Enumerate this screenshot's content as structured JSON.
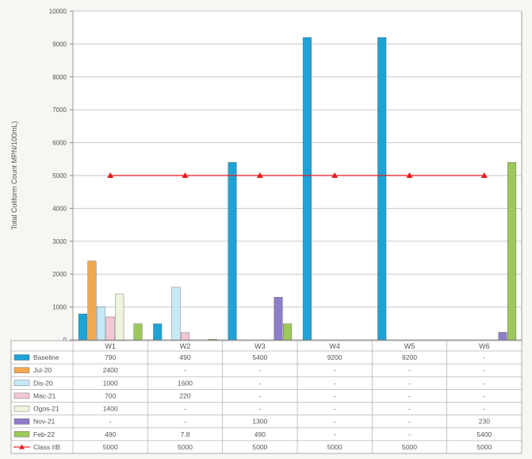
{
  "chart_data": {
    "type": "bar",
    "ylabel": "Total Coliform Count MPN/100mL)",
    "ylim": [
      0,
      10000
    ],
    "yticks": [
      0,
      1000,
      2000,
      3000,
      4000,
      5000,
      6000,
      7000,
      8000,
      9000,
      10000
    ],
    "ytick_labels": [
      "0",
      "1000",
      "2000",
      "3000",
      "4000",
      "5000",
      "6000",
      "7000",
      "8000",
      "9000",
      "10000"
    ],
    "grid": true,
    "categories": [
      "W1",
      "W2",
      "W3",
      "W4",
      "W5",
      "W6"
    ],
    "series": [
      {
        "name": "Baseline",
        "type": "bar",
        "color": "#1fa3d6",
        "values": [
          790,
          490,
          5400,
          9200,
          9200,
          null
        ],
        "labels": [
          "790",
          "490",
          "5400",
          "9200",
          "9200",
          "-"
        ]
      },
      {
        "name": "Jul-20",
        "type": "bar",
        "color": "#f2a850",
        "values": [
          2400,
          null,
          null,
          null,
          null,
          null
        ],
        "labels": [
          "2400",
          "-",
          "-",
          "-",
          "-",
          "-"
        ]
      },
      {
        "name": "Dis-20",
        "type": "bar",
        "color": "#c6e9f7",
        "values": [
          1000,
          1600,
          null,
          null,
          null,
          null
        ],
        "labels": [
          "1000",
          "1600",
          "-",
          "-",
          "-",
          "-"
        ]
      },
      {
        "name": "Mac-21",
        "type": "bar",
        "color": "#f3c7d6",
        "values": [
          700,
          220,
          null,
          null,
          null,
          null
        ],
        "labels": [
          "700",
          "220",
          "-",
          "-",
          "-",
          "-"
        ]
      },
      {
        "name": "Ogos-21",
        "type": "bar",
        "color": "#eef5df",
        "values": [
          1400,
          null,
          null,
          null,
          null,
          null
        ],
        "labels": [
          "1400",
          "-",
          "-",
          "-",
          "-",
          "-"
        ]
      },
      {
        "name": "Nov-21",
        "type": "bar",
        "color": "#8f7dc8",
        "values": [
          null,
          null,
          1300,
          null,
          null,
          230
        ],
        "labels": [
          "-",
          "-",
          "1300",
          "-",
          "-",
          "230"
        ]
      },
      {
        "name": "Feb-22",
        "type": "bar",
        "color": "#9cc95a",
        "values": [
          490,
          7.8,
          490,
          null,
          null,
          5400
        ],
        "labels": [
          "490",
          "7.8",
          "490",
          "-",
          "-",
          "5400"
        ]
      },
      {
        "name": "Class IIB",
        "type": "line",
        "color": "#e8191b",
        "values": [
          5000,
          5000,
          5000,
          5000,
          5000,
          5000
        ],
        "labels": [
          "5000",
          "5000",
          "5000",
          "5000",
          "5000",
          "5000"
        ]
      }
    ]
  }
}
